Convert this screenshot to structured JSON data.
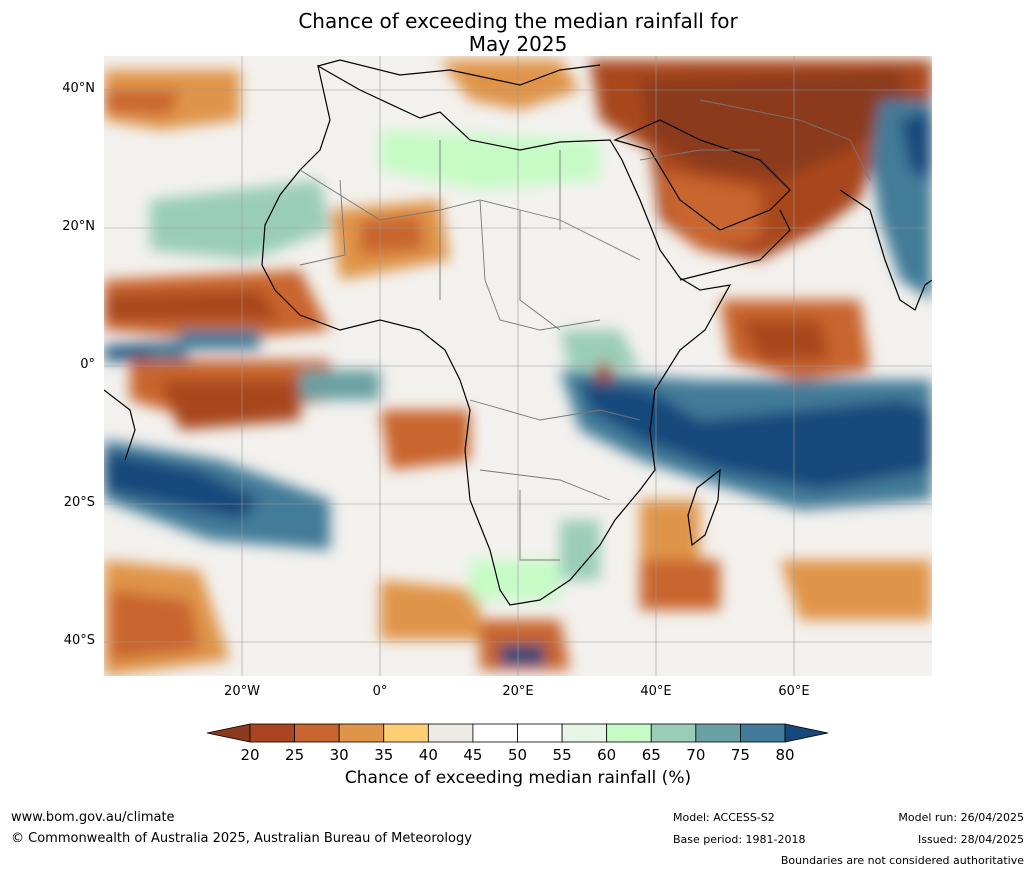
{
  "title_line1": "Chance of exceeding the median rainfall for",
  "title_line2": "May 2025",
  "lat_labels": [
    "40°N",
    "20°N",
    "0°",
    "20°S",
    "40°S"
  ],
  "lon_labels": [
    "20°W",
    "0°",
    "20°E",
    "40°E",
    "60°E"
  ],
  "colorbar": {
    "title": "Chance of exceeding median rainfall (%)",
    "ticks": [
      "20",
      "25",
      "30",
      "35",
      "40",
      "45",
      "50",
      "55",
      "60",
      "65",
      "70",
      "75",
      "80"
    ],
    "colors": [
      "#8b3a1f",
      "#a9461f",
      "#c9652f",
      "#e0944a",
      "#fdd076",
      "#eeebe6",
      "#ffffff",
      "#ffffff",
      "#e6f6e6",
      "#c6fbc6",
      "#9acdb8",
      "#6aa0a3",
      "#427b99",
      "#16497b"
    ]
  },
  "footer": {
    "website": "www.bom.gov.au/climate",
    "copyright": "© Commonwealth of Australia 2025, Australian Bureau of Meteorology",
    "model": "Model: ACCESS-S2",
    "base_period": "Base period: 1981-2018",
    "model_run": "Model run: 26/04/2025",
    "issued": "Issued: 28/04/2025",
    "disclaimer": "Boundaries are not considered authoritative"
  }
}
